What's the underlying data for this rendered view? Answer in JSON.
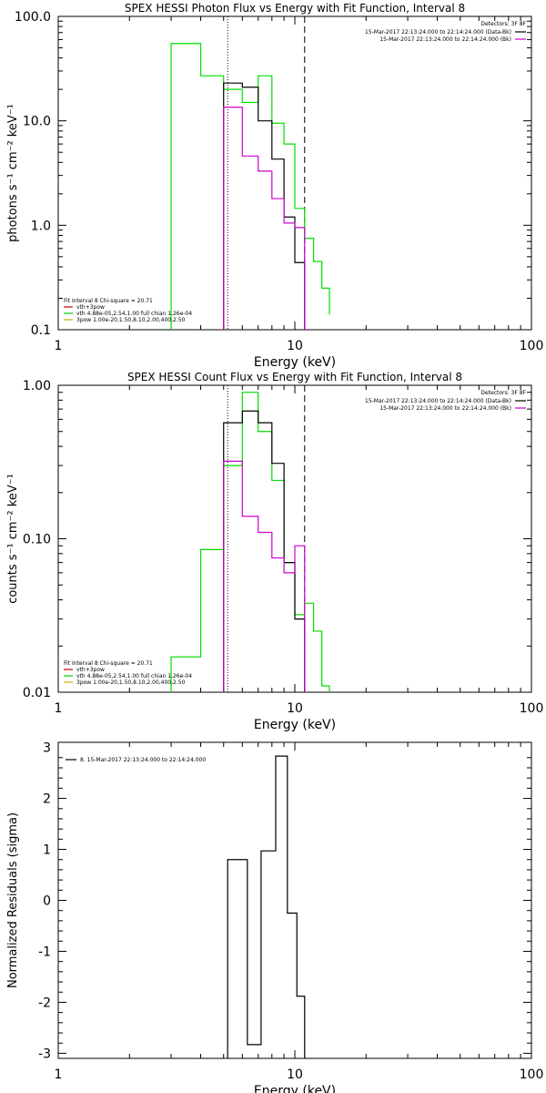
{
  "chart_data": [
    {
      "type": "line",
      "title": "SPEX HESSI Photon Flux vs Energy with Fit Function, Interval 8",
      "xlabel": "Energy (keV)",
      "ylabel": "photons s⁻¹ cm⁻² keV⁻¹",
      "xlim": [
        1,
        100
      ],
      "ylim": [
        0.1,
        100
      ],
      "xscale": "log",
      "yscale": "log",
      "x_tick_labels": [
        "1",
        "10",
        "100"
      ],
      "y_tick_labels": [
        "0.1",
        "1.0",
        "10.0",
        "100.0"
      ],
      "y_ticks": [
        0.1,
        1,
        10,
        100
      ],
      "vlines": [
        {
          "x": 5.2,
          "style": "dotted",
          "color": "#000000"
        },
        {
          "x": 11.0,
          "style": "dashed",
          "color": "#000000"
        }
      ],
      "legend_right": {
        "header": "Detectors: 3F 8F",
        "entries": [
          {
            "label": "15-Mar-2017 22:13:24.000 to 22:14:24.000 (Data-Bk)",
            "color": "#000000"
          },
          {
            "label": "15-Mar-2017 22:13:24.000 to 22:14:24.000 (Bk)",
            "color": "#cc00cc"
          }
        ]
      },
      "legend_left": {
        "header": "Fit Interval 8   Chi-square = 20.71",
        "entries": [
          {
            "label": "vth+3pow",
            "color": "#cc0000"
          },
          {
            "label": "vth 4.88e-05,2.54,1.00  full chian 1.26e-04",
            "color": "#00cc00"
          },
          {
            "label": "3pow 1.00e-20,1.50,8.10,2.00,400,2.50",
            "color": "#ccaa00"
          }
        ]
      },
      "series": [
        {
          "color": "#00dd00",
          "edges": [
            3.0,
            4.0,
            5.0,
            6.0,
            7.0,
            8.0,
            9.0,
            10.0,
            11.0,
            12.0,
            13.0,
            14.0
          ],
          "values": [
            55,
            27,
            20,
            15,
            27,
            9.5,
            6,
            1.45,
            0.75,
            0.45,
            0.25,
            0.14
          ]
        },
        {
          "color": "#000000",
          "edges": [
            5.0,
            6.0,
            7.0,
            8.0,
            9.0,
            10.0,
            11.0
          ],
          "values": [
            23,
            21,
            10,
            4.3,
            1.2,
            0.44
          ]
        },
        {
          "color": "#cc00cc",
          "edges": [
            5.0,
            6.0,
            7.0,
            8.0,
            9.0,
            10.0,
            11.0
          ],
          "values": [
            13.5,
            4.6,
            3.3,
            1.8,
            1.05,
            0.95
          ]
        }
      ]
    },
    {
      "type": "line",
      "title": "SPEX HESSI Count Flux vs Energy with Fit Function, Interval 8",
      "xlabel": "Energy (keV)",
      "ylabel": "counts s⁻¹ cm⁻² keV⁻¹",
      "xlim": [
        1,
        100
      ],
      "ylim": [
        0.01,
        1
      ],
      "xscale": "log",
      "yscale": "log",
      "x_tick_labels": [
        "1",
        "10",
        "100"
      ],
      "y_tick_labels": [
        "0.01",
        "0.10",
        "1.00"
      ],
      "y_ticks": [
        0.01,
        0.1,
        1
      ],
      "vlines": [
        {
          "x": 5.2,
          "style": "dotted",
          "color": "#000000"
        },
        {
          "x": 11.0,
          "style": "dashed",
          "color": "#000000"
        }
      ],
      "legend_right": {
        "header": "Detectors: 3F 8F",
        "entries": [
          {
            "label": "15-Mar-2017 22:13:24.000 to 22:14:24.000 (Data-Bk)",
            "color": "#000000"
          },
          {
            "label": "15-Mar-2017 22:13:24.000 to 22:14:24.000 (Bk)",
            "color": "#cc00cc"
          }
        ]
      },
      "legend_left": {
        "header": "Fit Interval 8   Chi-square = 20.71",
        "entries": [
          {
            "label": "vth+3pow",
            "color": "#cc0000"
          },
          {
            "label": "vth 4.88e-05,2.54,1.00  full chian 1.26e-04",
            "color": "#00cc00"
          },
          {
            "label": "3pow 1.00e-20,1.50,8.10,2.00,400,2.50",
            "color": "#ccaa00"
          }
        ]
      },
      "series": [
        {
          "color": "#00dd00",
          "edges": [
            3.0,
            4.0,
            5.0,
            6.0,
            7.0,
            8.0,
            9.0,
            10.0,
            11.0,
            12.0,
            13.0,
            14.0
          ],
          "values": [
            0.017,
            0.085,
            0.3,
            0.9,
            0.5,
            0.24,
            0.07,
            0.032,
            0.038,
            0.025,
            0.011,
            0.006
          ]
        },
        {
          "color": "#000000",
          "edges": [
            5.0,
            6.0,
            7.0,
            8.0,
            9.0,
            10.0,
            11.0
          ],
          "values": [
            0.57,
            0.68,
            0.57,
            0.31,
            0.07,
            0.03
          ]
        },
        {
          "color": "#cc00cc",
          "edges": [
            5.0,
            6.0,
            7.0,
            8.0,
            9.0,
            10.0,
            11.0
          ],
          "values": [
            0.32,
            0.14,
            0.11,
            0.075,
            0.06,
            0.09
          ]
        }
      ]
    },
    {
      "type": "line",
      "title": "",
      "xlabel": "Energy (keV)",
      "ylabel": "Normalized Residuals (sigma)",
      "xlim": [
        1,
        100
      ],
      "ylim": [
        -3.1,
        3.1
      ],
      "xscale": "log",
      "yscale": "linear",
      "x_tick_labels": [
        "1",
        "10",
        "100"
      ],
      "y_tick_labels": [
        "-3",
        "-2",
        "-1",
        "0",
        "1",
        "2",
        "3"
      ],
      "y_ticks": [
        -3,
        -2,
        -1,
        0,
        1,
        2,
        3
      ],
      "legend_left": {
        "header": "",
        "entries": [
          {
            "label": "8. 15-Mar-2017 22:13:24.000 to 22:14:24.000",
            "color": "#000000"
          }
        ]
      },
      "series": [
        {
          "color": "#000000",
          "edges": [
            5.2,
            6.3,
            7.2,
            8.3,
            9.3,
            10.2,
            11.0
          ],
          "values": [
            0.8,
            -2.83,
            0.97,
            2.83,
            -0.25,
            -1.88
          ]
        }
      ]
    }
  ]
}
